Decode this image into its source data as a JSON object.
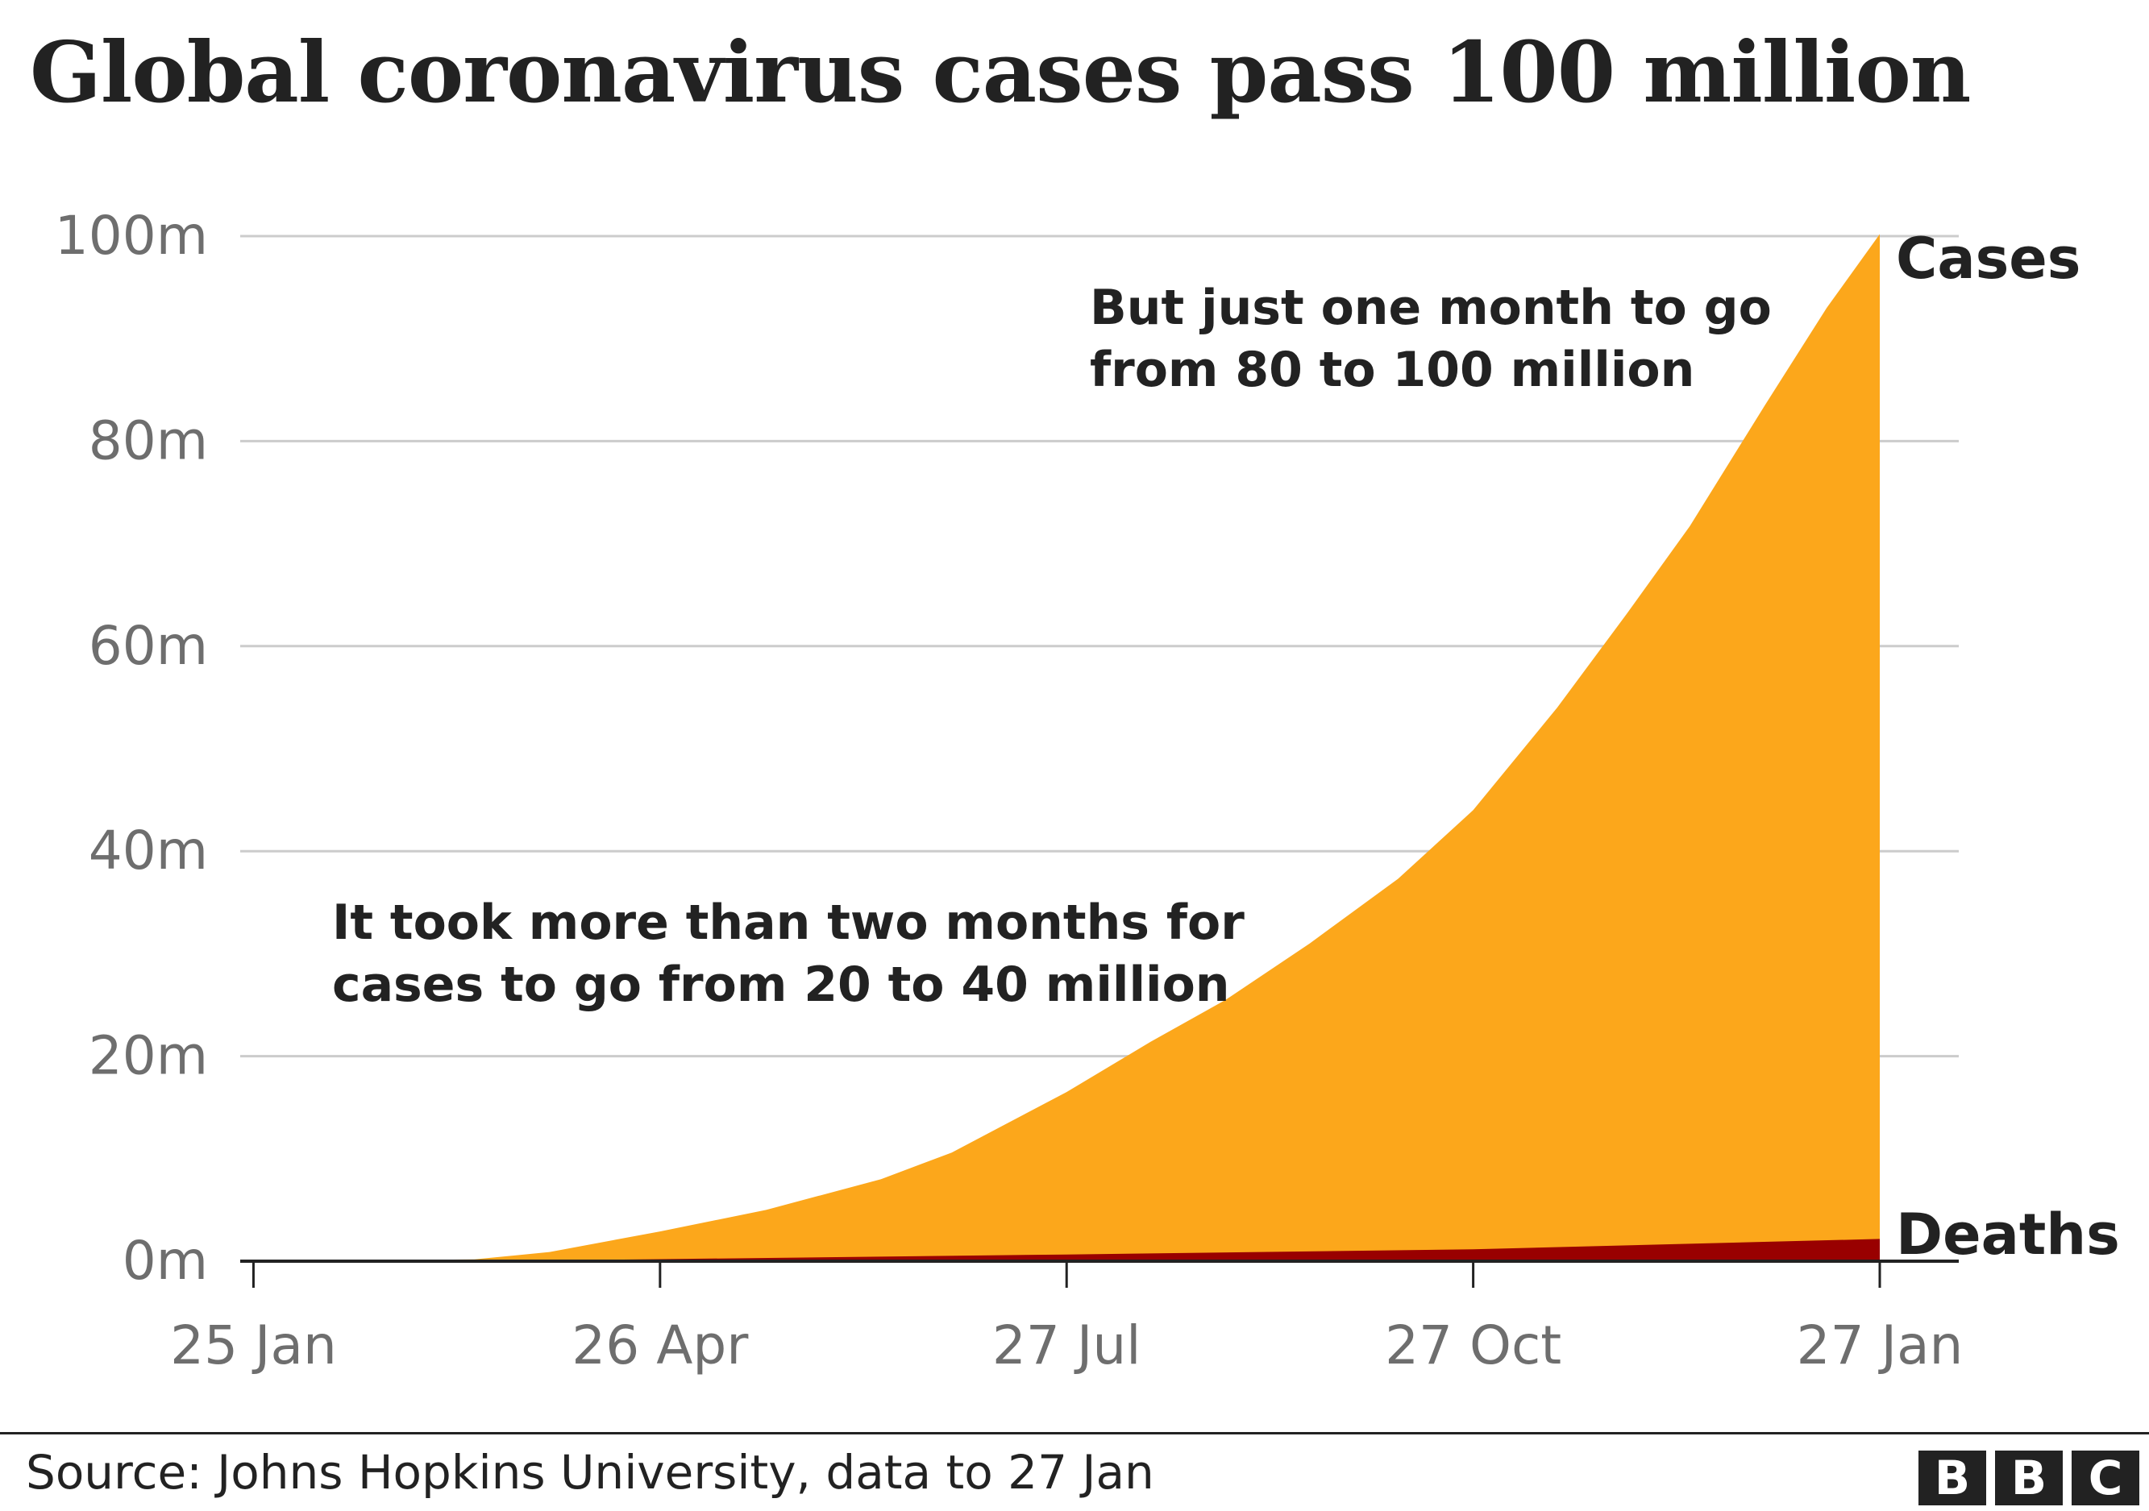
{
  "title": "Global coronavirus cases pass 100 million",
  "source": "Source: Johns Hopkins University, data to 27 Jan",
  "logo": [
    "B",
    "B",
    "C"
  ],
  "colors": {
    "cases": "#fca71b",
    "deaths": "#990000",
    "grid": "#cccccc",
    "axis": "#222222",
    "tick_text": "#6e6e6e",
    "text": "#222222"
  },
  "chart_data": {
    "type": "area",
    "title": "Global coronavirus cases pass 100 million",
    "xlabel": "",
    "ylabel": "",
    "unit": "m",
    "ylim": [
      0,
      100
    ],
    "yticks": [
      0,
      20,
      40,
      60,
      80,
      100
    ],
    "ytick_labels": [
      "0m",
      "20m",
      "40m",
      "60m",
      "80m",
      "100m"
    ],
    "xticks": [
      "2020-01-25",
      "2020-04-26",
      "2020-07-27",
      "2020-10-27",
      "2021-01-27"
    ],
    "xtick_labels": [
      "25 Jan",
      "26 Apr",
      "27 Jul",
      "27 Oct",
      "27 Jan"
    ],
    "xlim": [
      "2020-01-22",
      "2021-01-27"
    ],
    "grid": true,
    "series": [
      {
        "name": "Cases",
        "color": "#fca71b",
        "points": [
          [
            "2020-01-22",
            0
          ],
          [
            "2020-02-15",
            0.07
          ],
          [
            "2020-03-15",
            0.17
          ],
          [
            "2020-04-01",
            0.9
          ],
          [
            "2020-04-26",
            2.9
          ],
          [
            "2020-05-20",
            5
          ],
          [
            "2020-06-15",
            8
          ],
          [
            "2020-07-01",
            10.6
          ],
          [
            "2020-07-27",
            16.5
          ],
          [
            "2020-08-15",
            21.4
          ],
          [
            "2020-09-01",
            25.5
          ],
          [
            "2020-09-20",
            31
          ],
          [
            "2020-10-10",
            37.3
          ],
          [
            "2020-10-27",
            44
          ],
          [
            "2020-11-15",
            54
          ],
          [
            "2020-12-01",
            63.3
          ],
          [
            "2020-12-15",
            71.7
          ],
          [
            "2021-01-01",
            83.5
          ],
          [
            "2021-01-15",
            93
          ],
          [
            "2021-01-27",
            100.2
          ]
        ]
      },
      {
        "name": "Deaths",
        "color": "#990000",
        "points": [
          [
            "2020-01-22",
            0
          ],
          [
            "2020-03-15",
            0.01
          ],
          [
            "2020-04-26",
            0.2
          ],
          [
            "2020-07-27",
            0.65
          ],
          [
            "2020-10-27",
            1.16
          ],
          [
            "2021-01-27",
            2.17
          ]
        ]
      }
    ],
    "annotations": [
      {
        "lines": [
          "But just one month to go",
          "from 80 to 100 million"
        ]
      },
      {
        "lines": [
          "It took more than two months for",
          "cases to go from 20 to 40 million"
        ]
      }
    ]
  }
}
